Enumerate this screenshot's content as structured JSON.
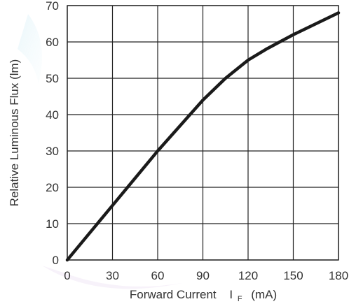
{
  "chart_data": {
    "type": "line",
    "xlabel": "Forward Current",
    "xlabel_symbol": "I",
    "xlabel_subscript": "F",
    "xlabel_unit": "(mA)",
    "ylabel": "Relative Luminous Flux (lm)",
    "xlim": [
      0,
      180
    ],
    "ylim": [
      0,
      70
    ],
    "x_ticks": [
      0,
      30,
      60,
      90,
      120,
      150,
      180
    ],
    "y_ticks": [
      0,
      10,
      20,
      30,
      40,
      50,
      60,
      70
    ],
    "grid": true,
    "series": [
      {
        "color": "#1a1a1a",
        "x": [
          0,
          30,
          60,
          90,
          105,
          120,
          132,
          150,
          180
        ],
        "y": [
          0,
          15,
          30,
          44,
          50,
          55,
          58,
          62,
          68
        ]
      }
    ]
  }
}
